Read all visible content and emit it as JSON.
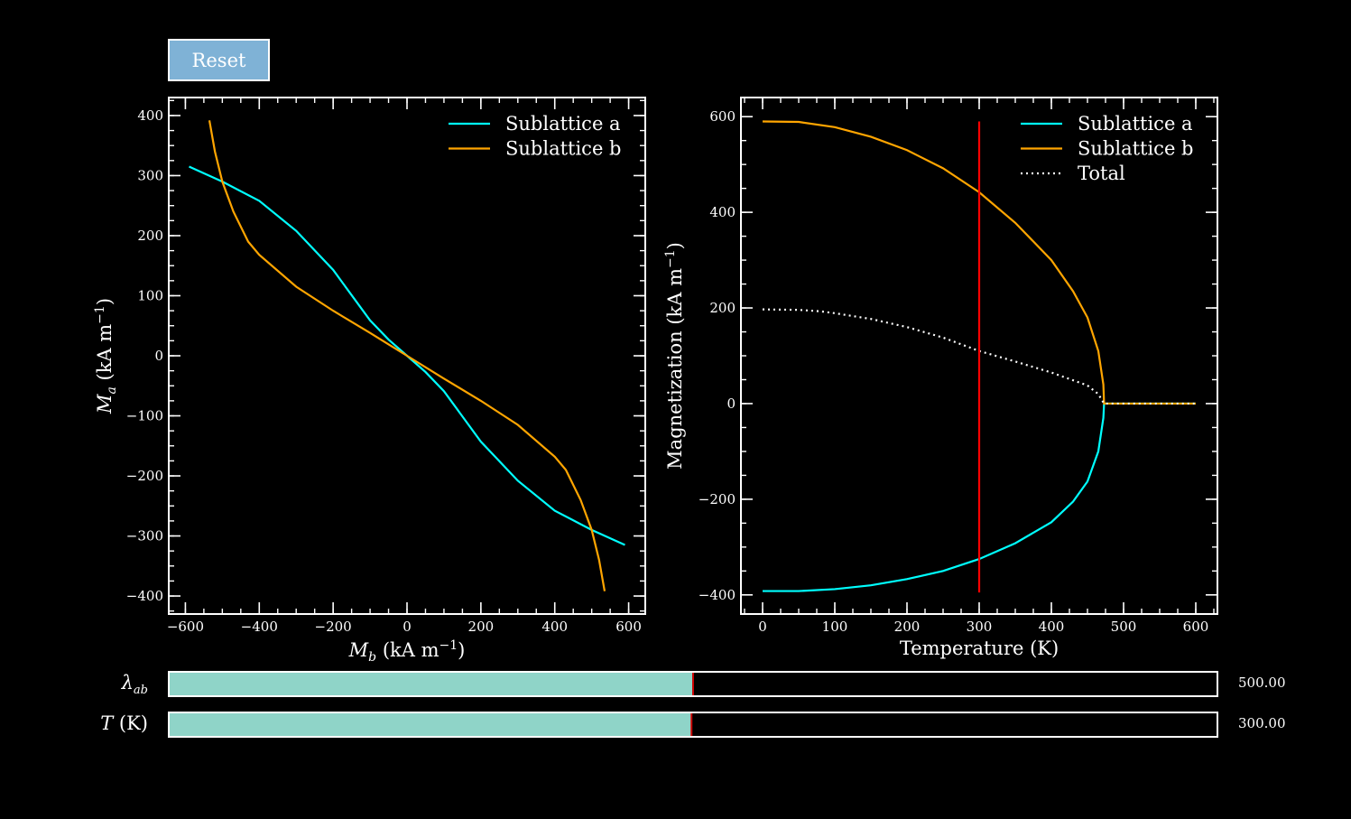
{
  "controls": {
    "reset_label": "Reset",
    "sliders": [
      {
        "id": "lambda",
        "label_symbol": "λ",
        "label_sub": "ab",
        "label_unit": "",
        "value_text": "500.00",
        "fraction": 0.5
      },
      {
        "id": "temperature",
        "label_symbol": "T",
        "label_sub": "",
        "label_unit": " (K)",
        "value_text": "300.00",
        "fraction": 0.4985
      }
    ],
    "slider_fill_color": "#8fd4c8",
    "slider_marker_color": "#cc0000"
  },
  "chart_data": [
    {
      "type": "line",
      "title": "",
      "xlabel": {
        "symbol": "M",
        "sub": "b",
        "unit": " (kA m",
        "exp": "−1",
        "close": ")"
      },
      "ylabel": {
        "symbol": "M",
        "sub": "a",
        "unit": " (kA m",
        "exp": "−1",
        "close": ")"
      },
      "xlim": [
        -645,
        645
      ],
      "ylim": [
        -430,
        430
      ],
      "xticks": [
        -600,
        -400,
        -200,
        0,
        200,
        400,
        600
      ],
      "xtick_labels": [
        "−600",
        "−400",
        "−200",
        "0",
        "200",
        "400",
        "600"
      ],
      "yticks": [
        -400,
        -300,
        -200,
        -100,
        0,
        100,
        200,
        300,
        400
      ],
      "ytick_labels": [
        "−400",
        "−300",
        "−200",
        "−100",
        "0",
        "100",
        "200",
        "300",
        "400"
      ],
      "grid": false,
      "legend": "top-right",
      "series": [
        {
          "name": "Sublattice a",
          "color": "#00ffff",
          "dash": "",
          "x": [
            -590,
            -500,
            -400,
            -300,
            -200,
            -100,
            -50,
            0,
            50,
            100,
            200,
            300,
            400,
            500,
            590
          ],
          "y": [
            315,
            290,
            258,
            208,
            143,
            59,
            27,
            0,
            -27,
            -59,
            -143,
            -208,
            -258,
            -290,
            -315
          ]
        },
        {
          "name": "Sublattice b",
          "color": "#ffa500",
          "dash": "",
          "x": [
            -535,
            -520,
            -500,
            -470,
            -430,
            -400,
            -300,
            -200,
            -100,
            0,
            100,
            200,
            300,
            400,
            430,
            470,
            500,
            520,
            535
          ],
          "y": [
            392,
            340,
            290,
            240,
            190,
            168,
            115,
            75,
            38,
            0,
            -38,
            -75,
            -115,
            -168,
            -190,
            -240,
            -290,
            -340,
            -392
          ]
        }
      ]
    },
    {
      "type": "line",
      "title": "",
      "xlabel": "Temperature (K)",
      "ylabel": {
        "text": "Magnetization (kA m",
        "exp": "−1",
        "close": ")"
      },
      "xlim": [
        -30,
        630
      ],
      "ylim": [
        -440,
        640
      ],
      "xticks": [
        0,
        100,
        200,
        300,
        400,
        500,
        600
      ],
      "xtick_labels": [
        "0",
        "100",
        "200",
        "300",
        "400",
        "500",
        "600"
      ],
      "yticks": [
        -400,
        -200,
        0,
        200,
        400,
        600
      ],
      "ytick_labels": [
        "−400",
        "−200",
        "0",
        "200",
        "400",
        "600"
      ],
      "grid": false,
      "legend": "top-right",
      "vline": {
        "x": 300,
        "y0": -395,
        "y1": 590,
        "color": "#ff0000"
      },
      "series": [
        {
          "name": "Sublattice a",
          "color": "#00ffff",
          "dash": "",
          "x": [
            0,
            50,
            100,
            150,
            200,
            250,
            300,
            350,
            400,
            430,
            450,
            465,
            472,
            473,
            480,
            600
          ],
          "y": [
            -392,
            -392,
            -388,
            -380,
            -367,
            -350,
            -325,
            -292,
            -248,
            -205,
            -163,
            -100,
            -30,
            0,
            0,
            0
          ]
        },
        {
          "name": "Sublattice b",
          "color": "#ffa500",
          "dash": "",
          "x": [
            0,
            50,
            100,
            150,
            200,
            250,
            300,
            350,
            400,
            430,
            450,
            465,
            472,
            473,
            480,
            600
          ],
          "y": [
            590,
            589,
            578,
            558,
            530,
            492,
            442,
            378,
            300,
            235,
            180,
            110,
            40,
            0,
            0,
            0
          ]
        },
        {
          "name": "Total",
          "color": "#ffffff",
          "dash": "2 4",
          "x": [
            0,
            50,
            80,
            100,
            150,
            200,
            250,
            300,
            350,
            400,
            450,
            465,
            473,
            480,
            600
          ],
          "y": [
            197,
            196,
            193,
            189,
            177,
            160,
            138,
            110,
            88,
            65,
            38,
            20,
            0,
            0,
            0
          ]
        }
      ]
    }
  ]
}
